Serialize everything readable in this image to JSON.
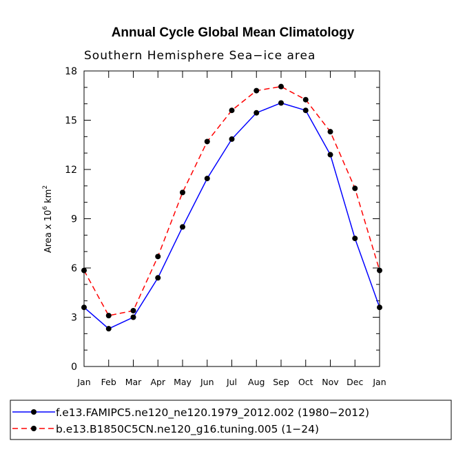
{
  "chart_data": {
    "type": "line",
    "title": "Annual Cycle Global Mean Climatology",
    "subtitle": "Southern Hemisphere Sea−ice area",
    "ylabel": "Area x 10",
    "ylabel_exp": "6",
    "ylabel_unit": "km",
    "ylabel_unit_exp": "2",
    "ylim": [
      0,
      18
    ],
    "yticks": [
      0,
      3,
      6,
      9,
      12,
      15,
      18
    ],
    "categories": [
      "Jan",
      "Feb",
      "Mar",
      "Apr",
      "May",
      "Jun",
      "Jul",
      "Aug",
      "Sep",
      "Oct",
      "Nov",
      "Dec",
      "Jan"
    ],
    "series": [
      {
        "name": "f.e13.FAMIPC5.ne120_ne120.1979_2012.002 (1980−2012)",
        "color": "#0000ff",
        "style": "solid",
        "values": [
          3.6,
          2.3,
          3.0,
          5.4,
          8.5,
          11.45,
          13.85,
          15.45,
          16.05,
          15.6,
          12.9,
          7.8,
          3.6
        ]
      },
      {
        "name": "b.e13.B1850C5CN.ne120_g16.tuning.005 (1−24)",
        "color": "#ff0000",
        "style": "dashed",
        "values": [
          5.85,
          3.1,
          3.4,
          6.7,
          10.6,
          13.7,
          15.6,
          16.8,
          17.05,
          16.25,
          14.3,
          10.85,
          5.85
        ]
      }
    ]
  }
}
